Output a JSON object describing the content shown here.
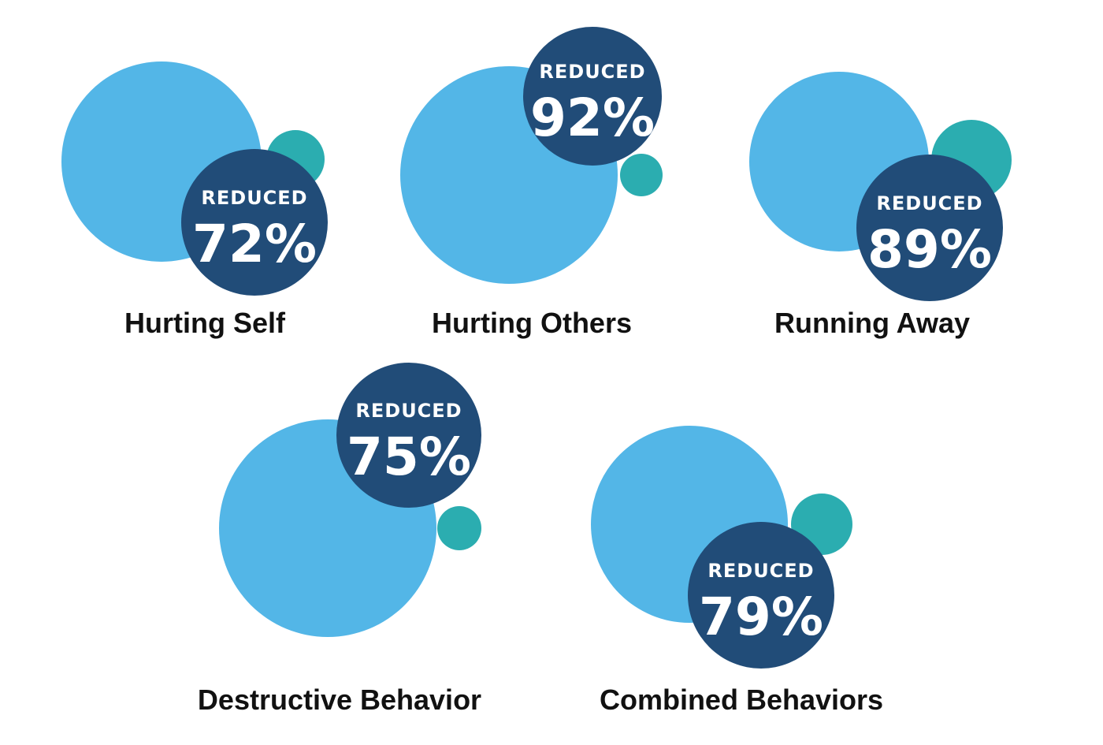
{
  "chart_data": {
    "type": "bubble",
    "value_prefix": "REDUCED",
    "categories": [
      "Hurting Self",
      "Hurting Others",
      "Running Away",
      "Destructive Behavior",
      "Combined Behaviors"
    ],
    "values": [
      72,
      92,
      89,
      75,
      79
    ],
    "value_labels": [
      "72%",
      "92%",
      "89%",
      "75%",
      "79%"
    ],
    "unit": "%"
  },
  "colors": {
    "before_circle": "#53B6E7",
    "after_circle": "#2BADB0",
    "badge": "#214C78",
    "badge_text": "#FFFFFF",
    "category_text": "#111111"
  }
}
